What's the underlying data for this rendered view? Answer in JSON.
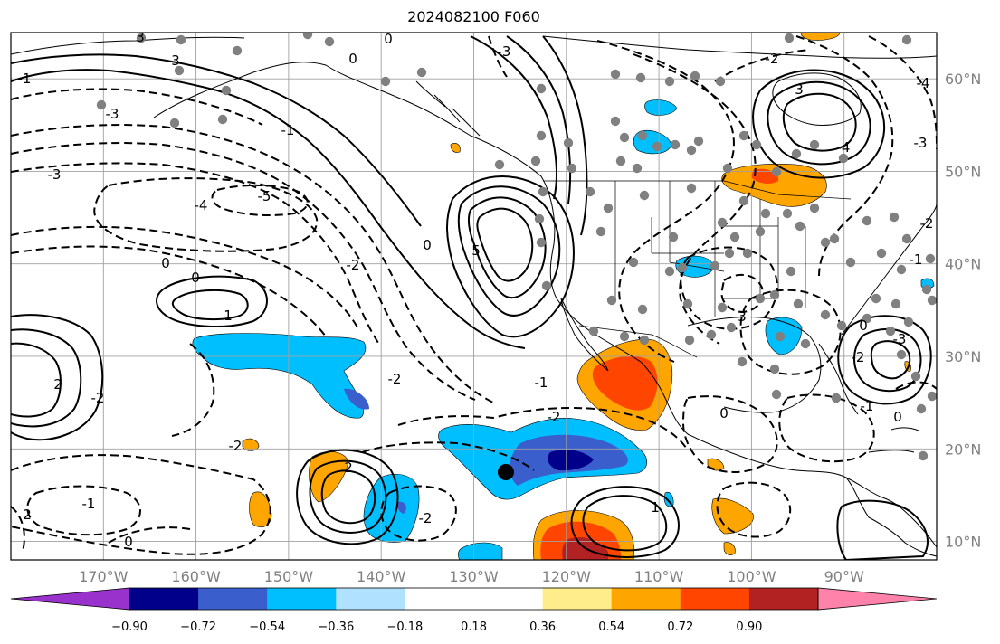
{
  "title": "2024082100 F060",
  "map": {
    "lon_range": [
      -180,
      -80
    ],
    "lat_range": [
      8,
      65
    ],
    "lon_labels": [
      "170°W",
      "160°W",
      "150°W",
      "140°W",
      "130°W",
      "120°W",
      "110°W",
      "100°W",
      "90°W"
    ],
    "lon_values": [
      -170,
      -160,
      -150,
      -140,
      -130,
      -120,
      -110,
      -100,
      -90
    ],
    "lat_labels": [
      "60°N",
      "50°N",
      "40°N",
      "30°N",
      "20°N",
      "10°N"
    ],
    "lat_values": [
      60,
      50,
      40,
      30,
      20,
      10
    ],
    "contour_labels": [
      "3",
      "3",
      "-3",
      "0",
      "0",
      "-2",
      "-3",
      "-1",
      "-3",
      "-4",
      "-5",
      "0",
      "0",
      "-2",
      "1",
      "-1",
      "0",
      "-2",
      "-1",
      "2",
      "-2",
      "-2",
      "-2",
      "0",
      "1",
      "-1",
      "0",
      "2",
      "-2",
      "3",
      "5",
      "3",
      "-4",
      "-3",
      "-2",
      "-1",
      "0",
      "-1",
      "0",
      "-2",
      "-4",
      "-3",
      "2"
    ],
    "colors": {
      "purple": "#9932cc",
      "navy": "#00008b",
      "royal": "#3a5fcd",
      "deepsky": "#00bfff",
      "lightsky": "#b0e2ff",
      "yellow": "#ffec8b",
      "orange": "#ffa500",
      "orangered": "#ff4500",
      "firebrick": "#b22222",
      "pink": "#ff82ab"
    }
  },
  "colorbar": {
    "ticks": [
      "−0.90",
      "−0.72",
      "−0.54",
      "−0.36",
      "−0.18",
      "0.18",
      "0.36",
      "0.54",
      "0.72",
      "0.90"
    ],
    "colors": [
      "#00008b",
      "#3a5fcd",
      "#00bfff",
      "#b0e2ff",
      "#ffffff",
      "#ffffff",
      "#ffec8b",
      "#ffa500",
      "#ff4500",
      "#b22222"
    ]
  }
}
